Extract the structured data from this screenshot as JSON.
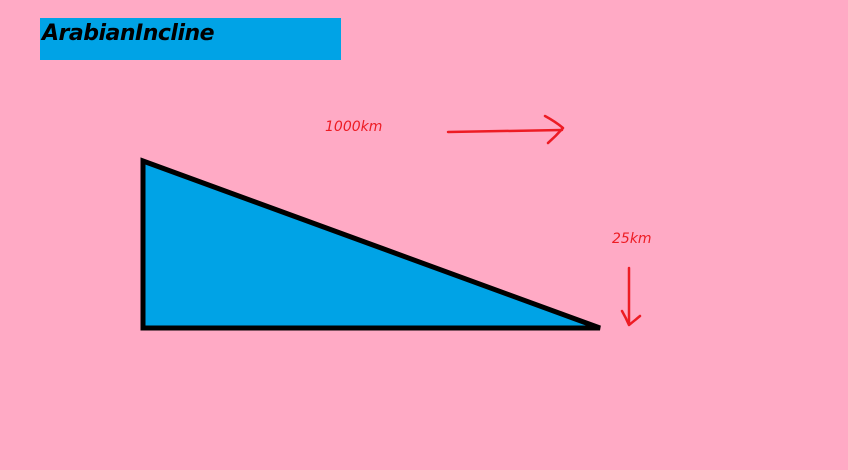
{
  "title": "ArabianIncline",
  "horizontal_label": "1000km",
  "vertical_label": "25km",
  "colors": {
    "background": "#ffaac5",
    "fill": "#00a3e6",
    "outline": "#000000",
    "annotation": "#ed1c24"
  }
}
